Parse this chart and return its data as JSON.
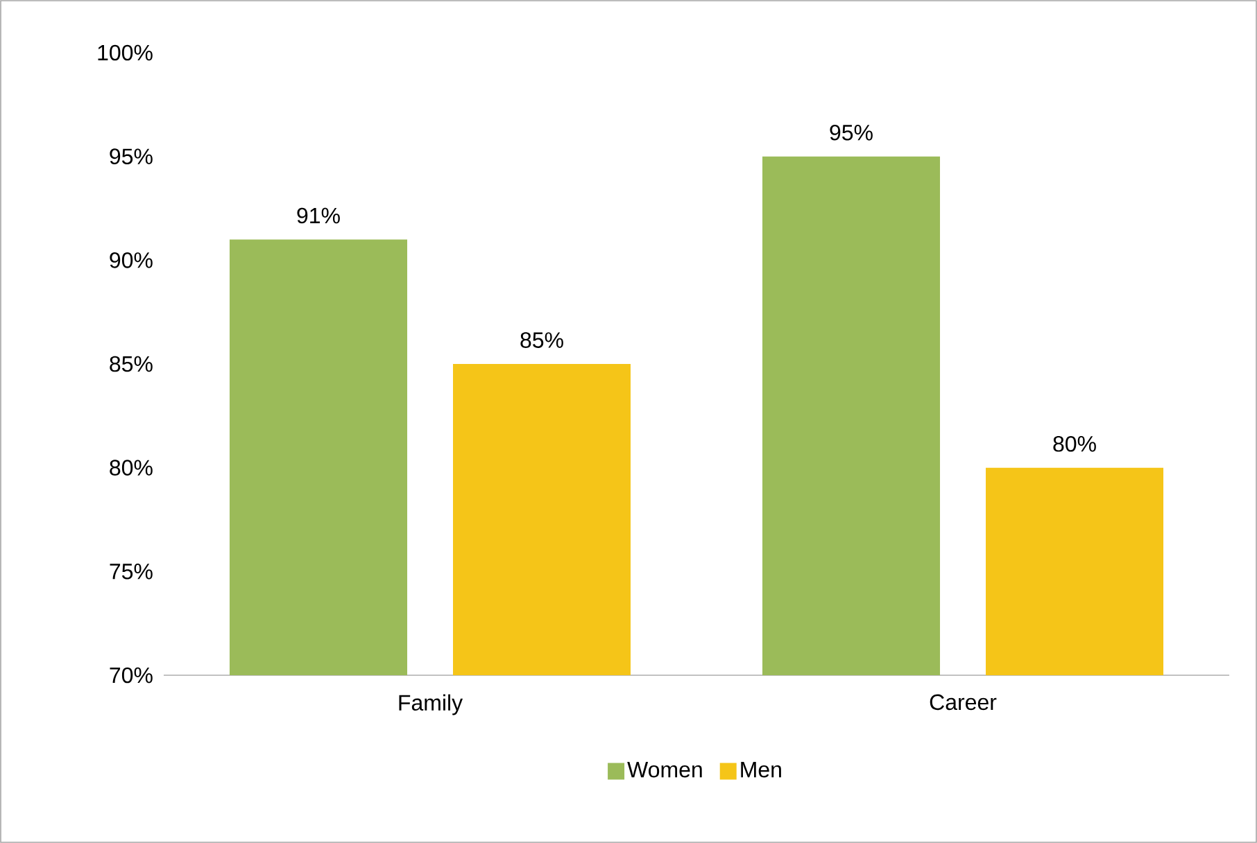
{
  "chart_data": {
    "type": "bar",
    "categories": [
      "Family",
      "Career"
    ],
    "series": [
      {
        "name": "Women",
        "color": "#9bbb59",
        "values": [
          91,
          95
        ],
        "value_labels": [
          "91%",
          "95%"
        ]
      },
      {
        "name": "Men",
        "color": "#f5c518",
        "values": [
          85,
          80
        ],
        "value_labels": [
          "85%",
          "80%"
        ]
      }
    ],
    "ylim": [
      70,
      100
    ],
    "yticks": [
      {
        "value": 70,
        "label": "70%"
      },
      {
        "value": 75,
        "label": "75%"
      },
      {
        "value": 80,
        "label": "80%"
      },
      {
        "value": 85,
        "label": "85%"
      },
      {
        "value": 90,
        "label": "90%"
      },
      {
        "value": 95,
        "label": "95%"
      },
      {
        "value": 100,
        "label": "100%"
      }
    ],
    "legend": "bottom",
    "grid": false
  }
}
